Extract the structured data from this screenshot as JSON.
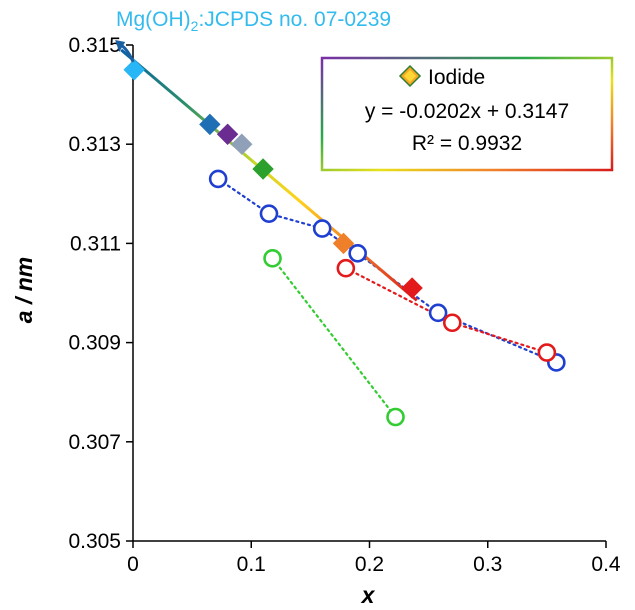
{
  "chart_data": {
    "type": "scatter",
    "xlabel": "x",
    "ylabel": "a / nm",
    "xlim": [
      0,
      0.4
    ],
    "ylim": [
      0.305,
      0.315
    ],
    "x_ticks": [
      0,
      0.1,
      0.2,
      0.3,
      0.4
    ],
    "x_tick_labels": [
      "0",
      "0.1",
      "0.2",
      "0.3",
      "0.4"
    ],
    "y_ticks": [
      0.305,
      0.307,
      0.309,
      0.311,
      0.313,
      0.315
    ],
    "y_tick_labels": [
      "0.305",
      "0.307",
      "0.309",
      "0.311",
      "0.313",
      "0.315"
    ],
    "grid": false,
    "annotation": {
      "prefix": "Mg(OH)",
      "subscript": "2",
      "suffix": ":JCPDS no. 07-0239",
      "color": "#33bbee",
      "x": -0.01,
      "y": 0.3149
    },
    "legend": {
      "placement": "top-right",
      "entry": "Iodide",
      "equation": "y = -0.0202x + 0.3147",
      "r_squared": "R² = 0.9932"
    },
    "iodide_fit": {
      "slope": -0.0202,
      "intercept": 0.3147,
      "x_range": [
        -0.01,
        0.24
      ],
      "style": "rainbow-gradient"
    },
    "iodide_points": [
      {
        "x": 0.001,
        "y": 0.3145,
        "color": "#29b6f6"
      },
      {
        "x": 0.065,
        "y": 0.3134,
        "color": "#1f6fb5"
      },
      {
        "x": 0.08,
        "y": 0.3132,
        "color": "#6a2c91"
      },
      {
        "x": 0.092,
        "y": 0.313,
        "color": "#8fa0b8"
      },
      {
        "x": 0.11,
        "y": 0.3125,
        "color": "#2ca02c"
      },
      {
        "x": 0.178,
        "y": 0.311,
        "color": "#f07f2a"
      },
      {
        "x": 0.236,
        "y": 0.3101,
        "color": "#e31a1c"
      }
    ],
    "series": [
      {
        "color": "#1f3fd1",
        "line_style": "dotted",
        "points": [
          {
            "x": 0.072,
            "y": 0.3123
          },
          {
            "x": 0.115,
            "y": 0.3116
          },
          {
            "x": 0.16,
            "y": 0.3113
          },
          {
            "x": 0.19,
            "y": 0.3108
          },
          {
            "x": 0.258,
            "y": 0.3096
          },
          {
            "x": 0.358,
            "y": 0.3086
          }
        ]
      },
      {
        "color": "#e31a1c",
        "line_style": "dotted",
        "points": [
          {
            "x": 0.18,
            "y": 0.3105
          },
          {
            "x": 0.27,
            "y": 0.3094
          },
          {
            "x": 0.35,
            "y": 0.3088
          }
        ]
      },
      {
        "color": "#33cc33",
        "line_style": "dotted",
        "points": [
          {
            "x": 0.118,
            "y": 0.3107
          },
          {
            "x": 0.222,
            "y": 0.3075
          }
        ]
      }
    ]
  }
}
